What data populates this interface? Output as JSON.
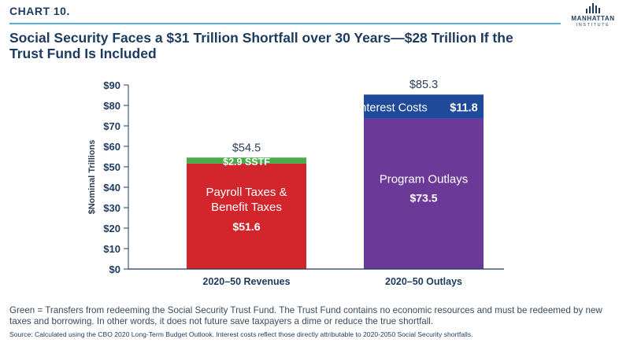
{
  "header": {
    "chart_number": "CHART 10.",
    "title": "Social Security Faces a $31 Trillion Shortfall over 30 Years—$28 Trillion If the Trust Fund Is Included",
    "logo_name": "MANHATTAN",
    "logo_sub": "INSTITUTE"
  },
  "colors": {
    "payroll": "#d3262c",
    "sstf": "#49ab4a",
    "program": "#6b3a99",
    "interest": "#1f4a9a",
    "axis": "#1d3a5f",
    "accent_line": "#59b0dc"
  },
  "chart_data": {
    "type": "bar",
    "stacked": true,
    "ylabel": "$Nominal Trillions",
    "ylim": [
      0,
      90
    ],
    "yticks": [
      "$0",
      "$10",
      "$20",
      "$30",
      "$40",
      "$50",
      "$60",
      "$70",
      "$80",
      "$90"
    ],
    "categories": [
      "2020–50 Revenues",
      "2020–50 Outlays"
    ],
    "totals": [
      "$54.5",
      "$85.3"
    ],
    "series": [
      {
        "segment": "payroll",
        "values": [
          51.6,
          0
        ],
        "label": [
          "Payroll Taxes &",
          "Benefit Taxes"
        ],
        "value_label": "$51.6"
      },
      {
        "segment": "sstf",
        "values": [
          2.9,
          0
        ],
        "value_label": "$2.9 SSTF"
      },
      {
        "segment": "program",
        "values": [
          0,
          73.5
        ],
        "label": [
          "Program Outlays"
        ],
        "value_label": "$73.5"
      },
      {
        "segment": "interest",
        "values": [
          0,
          11.8
        ],
        "label": [
          "Interest Costs"
        ],
        "value_label": "$11.8"
      }
    ]
  },
  "footer": {
    "note": "Green = Transfers from redeeming the Social Security Trust Fund. The Trust Fund contains no economic resources and must be redeemed by new taxes and borrowing. In other words, it does not future save taxpayers a dime or reduce the true shortfall.",
    "source": "Source: Calculated using the CBO 2020 Long-Term Budget Outlook. Interest costs reflect those directly attributable to 2020-2050 Social Security shortfalls."
  }
}
